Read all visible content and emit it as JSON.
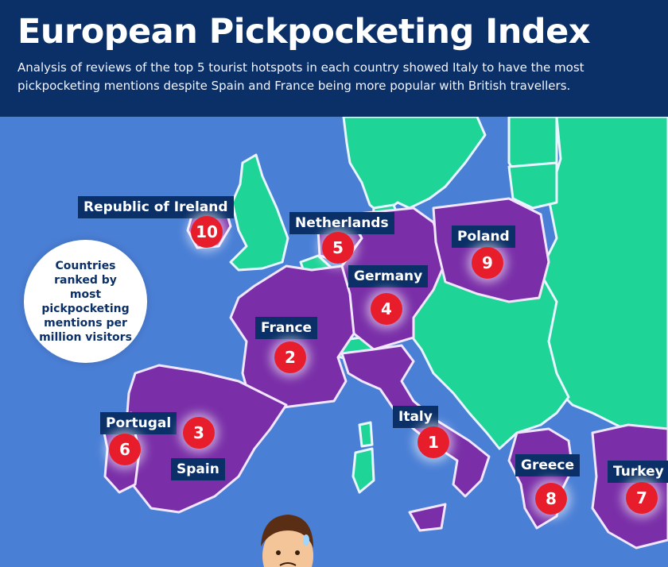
{
  "header": {
    "title": "European Pickpocketing Index",
    "subtitle": "Analysis of reviews of the top 5 tourist hotspots in each country showed Italy to have the most pickpocketing mentions despite Spain and France being more popular with British travellers."
  },
  "legend": {
    "text": "Countries ranked by most pickpocketing mentions per million visitors"
  },
  "colors": {
    "ranked_country": "#7a2fa8",
    "other_country": "#1ed497",
    "sea": "#4a7fd6",
    "border": "#e9f6ff",
    "badge": "#e81d2b",
    "header": "#0b3068"
  },
  "countries": [
    {
      "name": "Italy",
      "rank": 1
    },
    {
      "name": "France",
      "rank": 2
    },
    {
      "name": "Spain",
      "rank": 3
    },
    {
      "name": "Germany",
      "rank": 4
    },
    {
      "name": "Netherlands",
      "rank": 5
    },
    {
      "name": "Portugal",
      "rank": 6
    },
    {
      "name": "Turkey",
      "rank": 7
    },
    {
      "name": "Greece",
      "rank": 8
    },
    {
      "name": "Poland",
      "rank": 9
    },
    {
      "name": "Republic of Ireland",
      "rank": 10
    }
  ],
  "illustration": {
    "icon": "worried-tourist-icon"
  }
}
